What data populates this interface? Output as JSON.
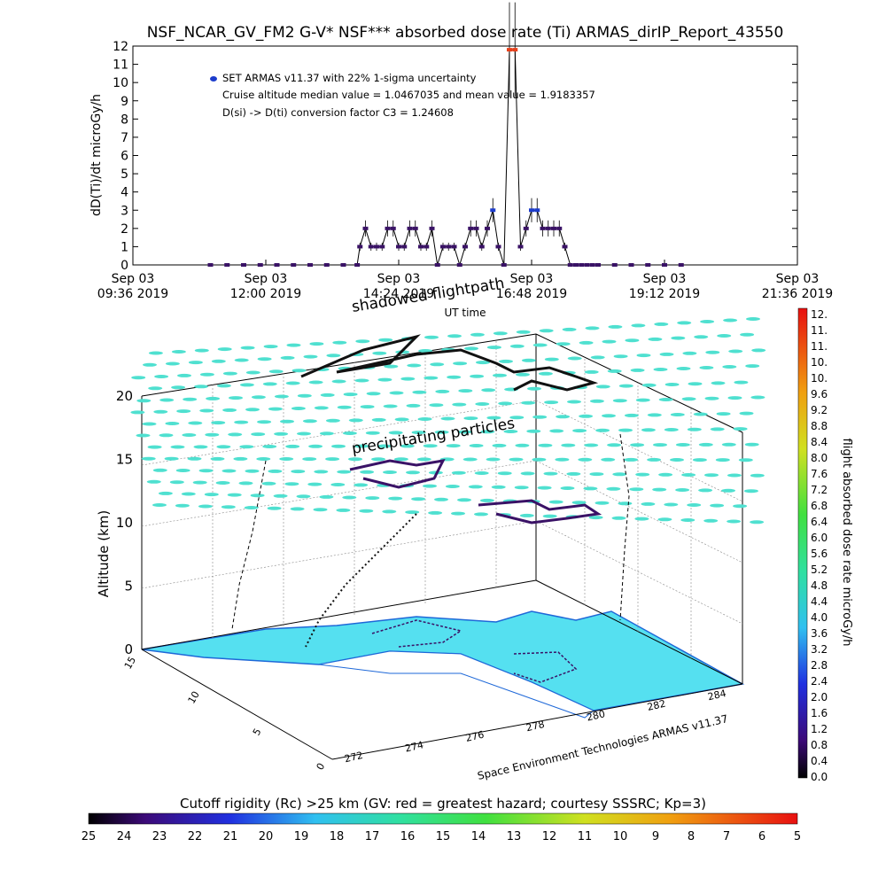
{
  "title": "NSF_NCAR_GV_FM2 G-V* NSF*** absorbed dose rate (Ti) ARMAS_dirIP_Report_43550",
  "chart_data": [
    {
      "type": "scatter",
      "ylabel": "dD(Ti)/dt microGy/h",
      "xlabel": "UT time",
      "ylim": [
        0,
        12
      ],
      "yticks": [
        0,
        1,
        2,
        3,
        4,
        5,
        6,
        7,
        8,
        9,
        10,
        11,
        12
      ],
      "xlim_hours": [
        9.6,
        21.6
      ],
      "xticks": [
        {
          "top": "Sep 03",
          "bottom": "09:36 2019"
        },
        {
          "top": "Sep 03",
          "bottom": "12:00 2019"
        },
        {
          "top": "Sep 03",
          "bottom": "14:24 2019"
        },
        {
          "top": "Sep 03",
          "bottom": "16:48 2019"
        },
        {
          "top": "Sep 03",
          "bottom": "19:12 2019"
        },
        {
          "top": "Sep 03",
          "bottom": "21:36 2019"
        }
      ],
      "legend": [
        "SET ARMAS v11.37 with 22% 1-sigma uncertainty",
        "Cruise altitude median value = 1.0467035 and mean value = 1.9183357",
        "D(si) -> D(ti) conversion factor C3 = 1.24608"
      ],
      "series": [
        {
          "x": [
            11.0,
            11.3,
            11.6,
            11.9,
            12.2,
            12.5,
            12.8,
            13.1,
            13.4,
            13.65,
            13.7,
            13.8,
            13.9,
            14.0,
            14.1,
            14.2,
            14.3,
            14.4,
            14.5,
            14.6,
            14.7,
            14.8,
            14.9,
            15.0,
            15.1,
            15.2,
            15.3,
            15.4,
            15.5,
            15.6,
            15.7,
            15.8,
            15.9,
            16.0,
            16.1,
            16.2,
            16.3,
            16.4,
            16.5,
            16.6,
            16.7,
            16.8,
            16.9,
            17.0,
            17.1,
            17.2,
            17.3,
            17.4,
            17.5,
            17.6,
            17.7,
            17.8,
            17.9,
            18.0,
            18.3,
            18.6,
            18.9,
            19.2,
            19.5
          ],
          "y": [
            0,
            0,
            0,
            0,
            0,
            0,
            0,
            0,
            0,
            0,
            1.0,
            2.0,
            1.0,
            1.0,
            1.0,
            2.0,
            2.0,
            1.0,
            1.0,
            2.0,
            2.0,
            1.0,
            1.0,
            2.0,
            0,
            1.0,
            1.0,
            1.0,
            0,
            1.0,
            2.0,
            2.0,
            1.0,
            2.0,
            3.0,
            1.0,
            0,
            11.8,
            11.8,
            1.0,
            2.0,
            3.0,
            3.0,
            2.0,
            2.0,
            2.0,
            2.0,
            1.0,
            0,
            0,
            0,
            0,
            0,
            0,
            0,
            0,
            0,
            0,
            0
          ]
        }
      ]
    },
    {
      "type": "surface3d",
      "zlabel": "Altitude (km)",
      "zlim": [
        0,
        20
      ],
      "zticks": [
        0,
        5,
        10,
        15,
        20
      ],
      "yticks": [
        0,
        5,
        10,
        15
      ],
      "xticks": [
        272,
        274,
        276,
        278,
        280,
        282,
        284
      ],
      "annotations": [
        "shadowed flightpath",
        "precipitating particles"
      ],
      "footer": "Space Environment Technologies ARMAS v11.37"
    }
  ],
  "colorbar_right": {
    "label": "flight absorbed dose rate microGy/h",
    "ticks": [
      "12.",
      "11.",
      "11.",
      "10.",
      "10.",
      "9.6",
      "9.2",
      "8.8",
      "8.4",
      "8.0",
      "7.6",
      "7.2",
      "6.8",
      "6.4",
      "6.0",
      "5.6",
      "5.2",
      "4.8",
      "4.4",
      "4.0",
      "3.6",
      "3.2",
      "2.8",
      "2.4",
      "2.0",
      "1.6",
      "1.2",
      "0.8",
      "0.4",
      "0.0"
    ]
  },
  "colorbar_bottom": {
    "label": "Cutoff rigidity (Rc) >25 km (GV: red = greatest hazard; courtesy SSSRC; Kp=3)",
    "ticks": [
      "25",
      "24",
      "23",
      "22",
      "21",
      "20",
      "19",
      "18",
      "17",
      "16",
      "15",
      "14",
      "13",
      "12",
      "11",
      "10",
      "9",
      "8",
      "7",
      "6",
      "5"
    ]
  },
  "colors": {
    "series": "#3a1266",
    "legend_dot": "#1c3ccc",
    "spike": "#e8401a",
    "land": "#55e0f0",
    "land_edge": "#1e68d8",
    "particles": "#4fe0d0"
  }
}
